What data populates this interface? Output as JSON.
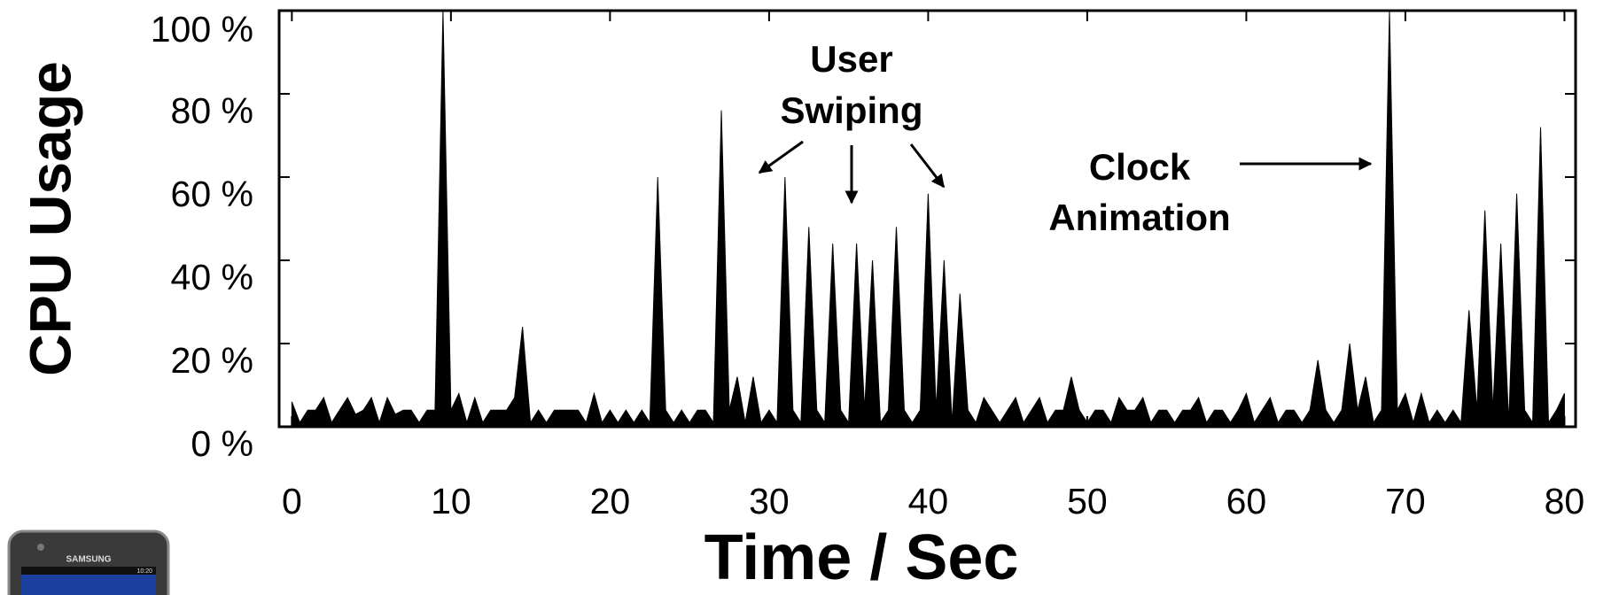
{
  "chart_data": {
    "type": "area",
    "x_label": "Time / Sec",
    "y_label": "CPU Usage",
    "color": "#000000",
    "xlim": [
      -0.8,
      80.7
    ],
    "ylim": [
      0,
      100
    ],
    "xticks": [
      0,
      10,
      20,
      30,
      40,
      50,
      60,
      70,
      80
    ],
    "yticks": [
      {
        "value": 0,
        "label": "0 %"
      },
      {
        "value": 20,
        "label": "20 %"
      },
      {
        "value": 40,
        "label": "40 %"
      },
      {
        "value": 60,
        "label": "60 %"
      },
      {
        "value": 80,
        "label": "80 %"
      },
      {
        "value": 100,
        "label": "100 %"
      }
    ],
    "annotations": [
      [
        "User",
        "Swiping"
      ],
      [
        "Clock",
        "Animation"
      ]
    ],
    "x": [
      0,
      0.5,
      1,
      1.5,
      2,
      2.5,
      3,
      3.5,
      4,
      4.5,
      5,
      5.5,
      6,
      6.5,
      7,
      7.5,
      8,
      8.5,
      9,
      9.5,
      10,
      10.5,
      11,
      11.5,
      12,
      12.5,
      13,
      13.5,
      14,
      14.5,
      15,
      15.5,
      16,
      16.5,
      17,
      17.5,
      18,
      18.5,
      19,
      19.5,
      20,
      20.5,
      21,
      21.5,
      22,
      22.5,
      23,
      23.5,
      24,
      24.5,
      25,
      25.5,
      26,
      26.5,
      27,
      27.5,
      28,
      28.5,
      29,
      29.5,
      30,
      30.5,
      31,
      31.5,
      32,
      32.5,
      33,
      33.5,
      34,
      34.5,
      35,
      35.5,
      36,
      36.5,
      37,
      37.5,
      38,
      38.5,
      39,
      39.5,
      40,
      40.5,
      41,
      41.5,
      42,
      42.5,
      43,
      43.5,
      44,
      44.5,
      45,
      45.5,
      46,
      46.5,
      47,
      47.5,
      48,
      48.5,
      49,
      49.5,
      50,
      50.5,
      51,
      51.5,
      52,
      52.5,
      53,
      53.5,
      54,
      54.5,
      55,
      55.5,
      56,
      56.5,
      57,
      57.5,
      58,
      58.5,
      59,
      59.5,
      60,
      60.5,
      61,
      61.5,
      62,
      62.5,
      63,
      63.5,
      64,
      64.5,
      65,
      65.5,
      66,
      66.5,
      67,
      67.5,
      68,
      68.5,
      69,
      69.5,
      70,
      70.5,
      71,
      71.5,
      72,
      72.5,
      73,
      73.5,
      74,
      74.5,
      75,
      75.5,
      76,
      76.5,
      77,
      77.5,
      78,
      78.5,
      79,
      79.5,
      80
    ],
    "values": [
      6,
      1,
      4,
      4,
      7,
      1,
      4,
      7,
      3,
      4,
      7,
      1,
      7,
      3,
      4,
      4,
      1,
      4,
      4,
      100,
      4,
      8,
      1,
      7,
      1,
      4,
      4,
      4,
      7,
      24,
      1,
      4,
      1,
      4,
      4,
      4,
      4,
      1,
      8,
      1,
      4,
      1,
      4,
      1,
      4,
      1,
      60,
      4,
      1,
      4,
      1,
      4,
      4,
      1,
      76,
      4,
      12,
      1,
      12,
      1,
      4,
      1,
      60,
      4,
      1,
      48,
      4,
      1,
      44,
      4,
      1,
      44,
      4,
      40,
      1,
      4,
      48,
      4,
      1,
      4,
      56,
      4,
      40,
      1,
      32,
      4,
      1,
      7,
      4,
      1,
      4,
      7,
      1,
      4,
      7,
      1,
      4,
      4,
      12,
      4,
      1,
      4,
      4,
      1,
      7,
      4,
      4,
      7,
      1,
      4,
      4,
      1,
      4,
      4,
      7,
      1,
      4,
      4,
      1,
      4,
      8,
      1,
      4,
      7,
      1,
      4,
      4,
      1,
      4,
      16,
      4,
      1,
      4,
      20,
      4,
      12,
      1,
      4,
      100,
      4,
      8,
      1,
      8,
      1,
      4,
      1,
      4,
      1,
      28,
      4,
      52,
      4,
      44,
      1,
      56,
      4,
      1,
      72,
      1,
      4,
      8
    ]
  },
  "phone": {
    "brand": "SAMSUNG",
    "clock": "10:20"
  }
}
